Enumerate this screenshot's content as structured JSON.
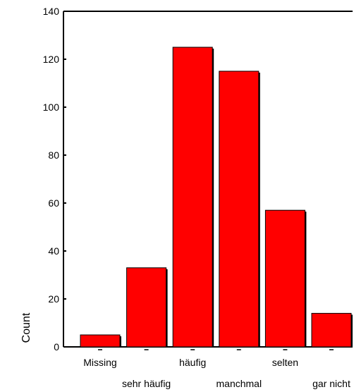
{
  "chart_data": {
    "type": "bar",
    "categories": [
      "Missing",
      "sehr häufig",
      "häufig",
      "manchmal",
      "selten",
      "gar nicht"
    ],
    "values": [
      5,
      33,
      125,
      115,
      57,
      14
    ],
    "title": "",
    "xlabel": "",
    "ylabel": "Count",
    "ylim": [
      0,
      140
    ],
    "yticks": [
      0,
      20,
      40,
      60,
      80,
      100,
      120,
      140
    ],
    "grid": false,
    "legend": "none",
    "bar_color": "#ff0000",
    "bar_shadow_color": "#000000"
  }
}
